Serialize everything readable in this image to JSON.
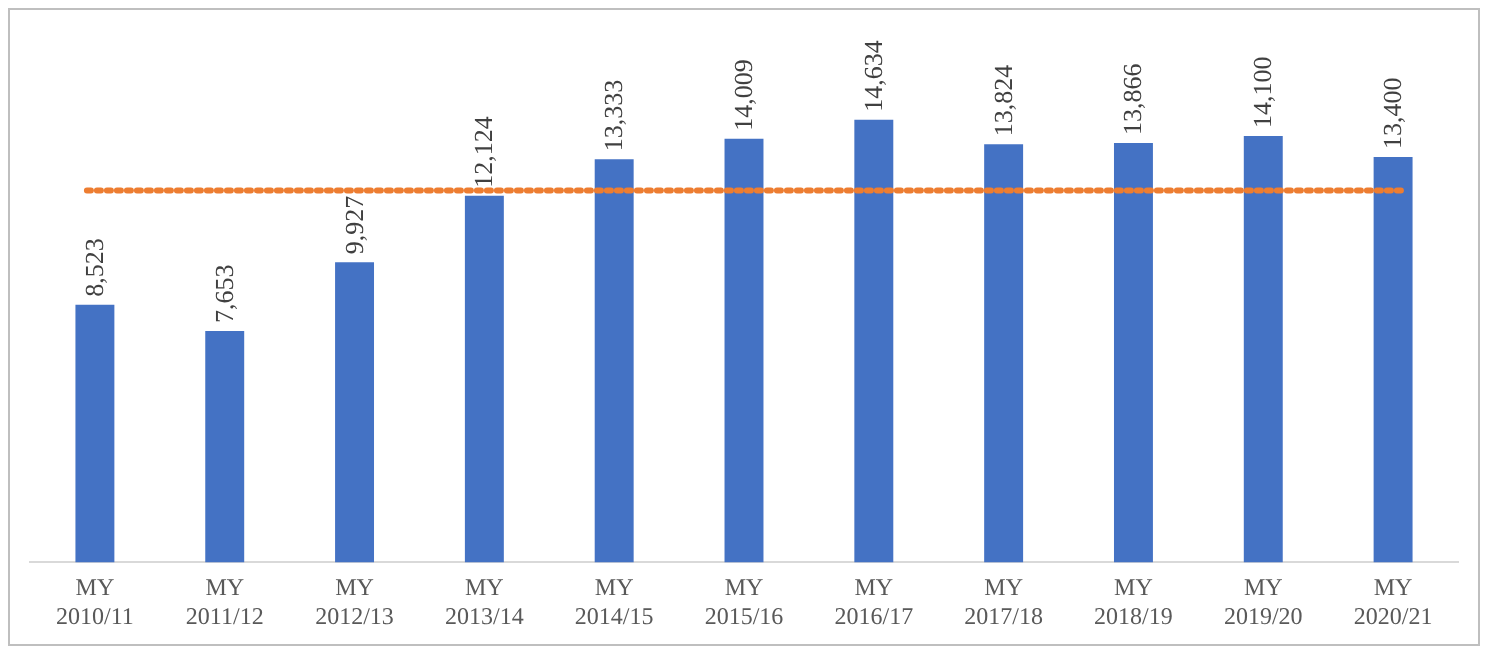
{
  "chart_data": {
    "type": "bar",
    "categories": [
      "MY 2010/11",
      "MY 2011/12",
      "MY 2012/13",
      "MY 2013/14",
      "MY 2014/15",
      "MY 2015/16",
      "MY 2016/17",
      "MY 2017/18",
      "MY 2018/19",
      "MY 2019/20",
      "MY 2020/21"
    ],
    "values": [
      8523,
      7653,
      9927,
      12124,
      13333,
      14009,
      14634,
      13824,
      13866,
      14100,
      13400
    ],
    "value_labels": [
      "8,523",
      "7,653",
      "9,927",
      "12,124",
      "13,333",
      "14,009",
      "14,634",
      "13,824",
      "13,866",
      "14,100",
      "13,400"
    ],
    "color": "#4472c4",
    "tick_labels": "x",
    "grid": false,
    "legend": false,
    "ref_lines": [
      {
        "axis": "y",
        "value": 12300,
        "color": "#ed7d31",
        "line_style": "dotted"
      }
    ]
  }
}
